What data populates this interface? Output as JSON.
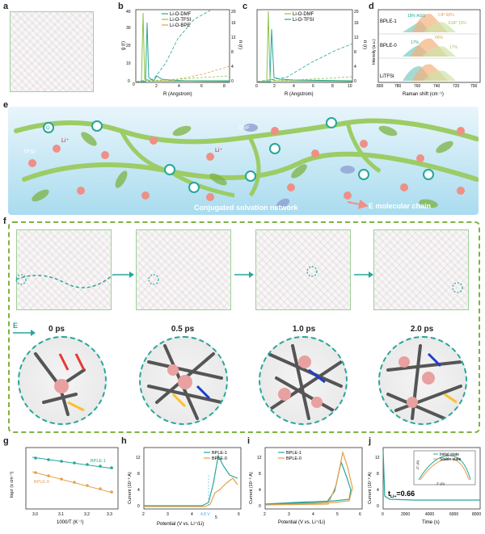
{
  "panels": {
    "a": "a",
    "b": "b",
    "c": "c",
    "d": "d",
    "e": "e",
    "f": "f",
    "g": "g",
    "h": "h",
    "i": "i",
    "j": "j"
  },
  "panel_b": {
    "legend": [
      "Li-O-DMF",
      "Li-O-TFSI",
      "Li-O-BPE"
    ],
    "xlabel": "R (Angstrom)",
    "ylabel_left": "g (r)",
    "ylabel_right": "n (r)",
    "xticks": [
      "0",
      "2",
      "4",
      "6",
      "8"
    ],
    "yticks_left": [
      "0",
      "10",
      "20",
      "30",
      "40"
    ],
    "yticks_right": [
      "0",
      "4",
      "8",
      "12",
      "16",
      "20"
    ]
  },
  "panel_c": {
    "legend": [
      "Li-O-DMF",
      "Li-O-TFSI"
    ],
    "xlabel": "R (Angstrom)",
    "ylabel_right": "n (r)",
    "xticks": [
      "0",
      "2",
      "4",
      "6",
      "8",
      "10"
    ],
    "yticks_right": [
      "0",
      "4",
      "8",
      "12",
      "16",
      "20"
    ]
  },
  "panel_d": {
    "rows": [
      "BPLE-1",
      "BPLE-0",
      "LiTFSI"
    ],
    "labels": {
      "agg": "18%\nAGG",
      "cip1": "CIP 68%",
      "ssip1": "SSIP 15%",
      "p17a": "17%",
      "p66": "66%",
      "p17b": "17%"
    },
    "xlabel": "Raman shift (cm⁻¹)",
    "ylabel": "Intensity (a.u.)",
    "xticks": [
      "800",
      "780",
      "760",
      "740",
      "720",
      "700"
    ]
  },
  "panel_e": {
    "tfsi": "TFSI⁻",
    "li": "Li⁺",
    "li2": "Li⁺",
    "dmf": "DMF",
    "o": "O",
    "caption_network": "Conjugated solvation network",
    "caption_chain": "E molecular chain"
  },
  "panel_f": {
    "times": [
      "0 ps",
      "0.5 ps",
      "1.0 ps",
      "2.0 ps"
    ],
    "e_label": "E"
  },
  "panel_g": {
    "series": [
      "BPLE-1",
      "BPLE-0"
    ],
    "xlabel": "1000/T (K⁻¹)",
    "ylabel": "logσ (s cm⁻¹)",
    "xticks": [
      "3.0",
      "3.1",
      "3.2",
      "3.3"
    ]
  },
  "panel_h": {
    "series": [
      "BPLE-1",
      "BPLE-0"
    ],
    "xlabel": "Potential (V vs. Li⁺/Li)",
    "ylabel": "Current (10⁻⁵ A)",
    "annotation": "4.8 V",
    "xticks": [
      "2",
      "3",
      "4",
      "5",
      "6"
    ],
    "yticks": [
      "0",
      "4",
      "8",
      "12"
    ]
  },
  "panel_i": {
    "series": [
      "BPLE-1",
      "BPLE-0"
    ],
    "xlabel": "Potential (V vs. Li⁺/Li)",
    "ylabel": "Current (10⁻⁵ A)",
    "xticks": [
      "2",
      "3",
      "4",
      "5",
      "6"
    ],
    "yticks": [
      "0",
      "4",
      "8",
      "12"
    ]
  },
  "panel_j": {
    "series": [
      "Initial state",
      "Stable state"
    ],
    "xlabel": "Time (s)",
    "ylabel": "Current (10⁻⁵ A)",
    "annotation": "t",
    "annotation_sub": "Li+",
    "annotation_value": "=0.66",
    "inset_xlabel": "Z' (Ω)",
    "inset_ylabel": "-Z'' (Ω)",
    "xticks": [
      "0",
      "2000",
      "4000",
      "6000",
      "8000"
    ],
    "yticks": [
      "0",
      "4",
      "8",
      "12"
    ]
  },
  "colors": {
    "teal": "#26a69a",
    "orange": "#e6a04a",
    "green": "#7cb342",
    "pink": "#ef8f86",
    "blue_bg": "#9bd3ea"
  }
}
